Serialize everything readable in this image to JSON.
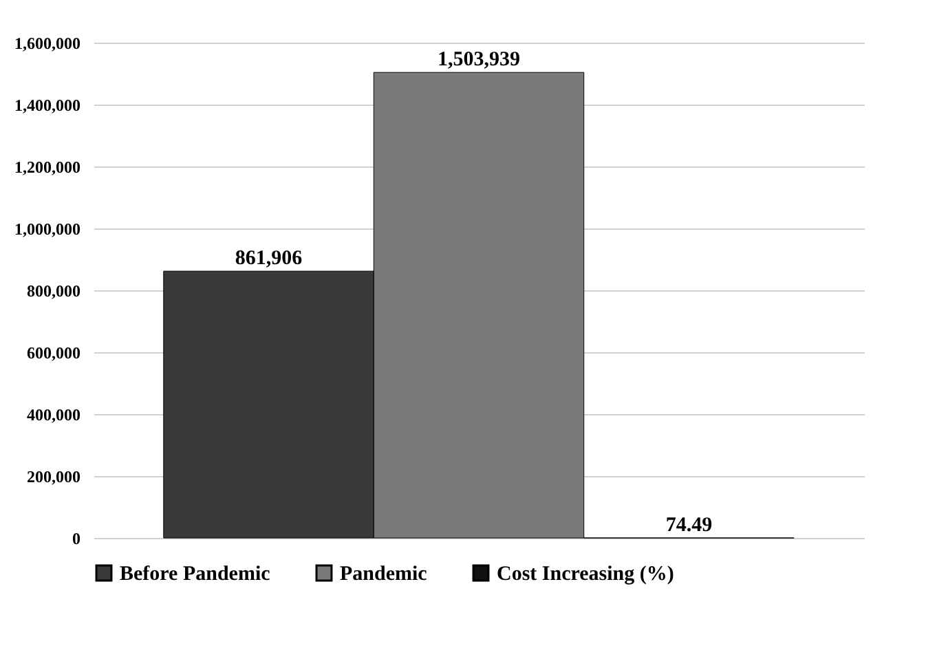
{
  "chart_data": {
    "type": "bar",
    "categories": [
      null
    ],
    "series": [
      {
        "name": "Before Pandemic",
        "color": "#3a3a3a",
        "values": [
          861906
        ],
        "value_labels": [
          "861,906"
        ]
      },
      {
        "name": "Pandemic",
        "color": "#7a7a7a",
        "values": [
          1503939
        ],
        "value_labels": [
          "1,503,939"
        ]
      },
      {
        "name": "Cost Increasing (%)",
        "color": "#111111",
        "values": [
          74.49
        ],
        "value_labels": [
          "74.49"
        ]
      }
    ],
    "ylim": [
      0,
      1600000
    ],
    "yticks": [
      0,
      {
        "value": 200000,
        "label": "200,000"
      },
      {
        "value": 400000,
        "label": "400,000"
      },
      {
        "value": 600000,
        "label": "600,000"
      },
      {
        "value": 800000,
        "label": "800,000"
      },
      {
        "value": 1000000,
        "label": "1,000,000"
      },
      {
        "value": 1200000,
        "label": "1,200,000"
      },
      {
        "value": 1400000,
        "label": "1,400,000"
      },
      {
        "value": 1600000,
        "label": "1,600,000"
      }
    ],
    "grid": "y",
    "legend": "bottom",
    "tick_labels": "y"
  }
}
